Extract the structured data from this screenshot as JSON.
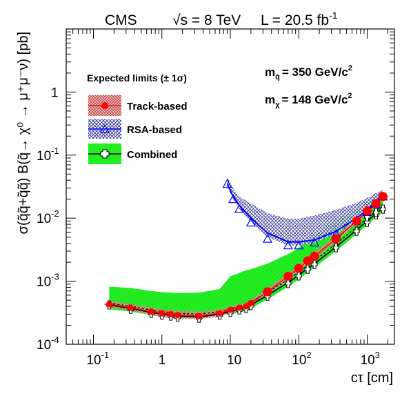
{
  "header": {
    "experiment": "CMS",
    "energy": "√s = 8 TeV",
    "lumi_prefix": "L = 20.5 fb",
    "lumi_sup": "-1"
  },
  "chart_data": {
    "type": "line",
    "x_scale": "log",
    "y_scale": "log",
    "xlabel": "cτ [cm]",
    "ylabel": "σ(q̃q̃+q̃q̃) B(q̃→ χ⁰ → μ⁺μ⁻ν) [pb]",
    "xlim": [
      0.04,
      2500
    ],
    "ylim": [
      0.0001,
      10
    ],
    "x_ticks": [
      {
        "value": 0.1,
        "base": "10",
        "exp": "-1"
      },
      {
        "value": 1,
        "base": "1",
        "exp": ""
      },
      {
        "value": 10,
        "base": "10",
        "exp": ""
      },
      {
        "value": 100,
        "base": "10",
        "exp": "2"
      },
      {
        "value": 1000,
        "base": "10",
        "exp": "3"
      }
    ],
    "y_ticks": [
      {
        "value": 0.0001,
        "base": "10",
        "exp": "-4"
      },
      {
        "value": 0.001,
        "base": "10",
        "exp": "-3"
      },
      {
        "value": 0.01,
        "base": "10",
        "exp": "-2"
      },
      {
        "value": 0.1,
        "base": "10",
        "exp": "-1"
      },
      {
        "value": 1,
        "base": "1",
        "exp": ""
      }
    ],
    "legend": {
      "title": "Expected limits (± 1σ)",
      "placement": "top-left",
      "entries": [
        "Track-based",
        "RSA-based",
        "Combined"
      ]
    },
    "annotations": {
      "squark_mass_label": "m",
      "squark_mass_sub": "q̃",
      "squark_mass_value": "= 350 GeV/c",
      "squark_mass_sup": "2",
      "neutralino_mass_label": "m",
      "neutralino_mass_sub": "χ",
      "neutralino_mass_value": "= 148 GeV/c",
      "neutralino_mass_sup": "2"
    },
    "series": [
      {
        "name": "Track-based",
        "color": "#ff0000",
        "band_color": "#c0392b",
        "x": [
          0.17,
          0.35,
          0.7,
          1.0,
          1.35,
          1.7,
          3.5,
          7.0,
          10.0,
          13.5,
          17.0,
          20.0,
          35.0,
          70.0,
          100.0,
          135.0,
          170.0,
          350.0,
          700.0,
          1000.0,
          1350.0,
          1700.0
        ],
        "y": [
          0.00043,
          0.00038,
          0.00033,
          0.00031,
          0.0003,
          0.00029,
          0.00028,
          0.00031,
          0.00035,
          0.00038,
          0.0004,
          0.00045,
          0.00068,
          0.0012,
          0.0016,
          0.0021,
          0.0025,
          0.0047,
          0.009,
          0.013,
          0.017,
          0.022
        ],
        "band_low": [
          0.00038,
          0.00034,
          0.00029,
          0.00027,
          0.00026,
          0.00025,
          0.00025,
          0.00027,
          0.00031,
          0.00034,
          0.00036,
          0.0004,
          0.0006,
          0.00105,
          0.0014,
          0.0018,
          0.0022,
          0.0042,
          0.0082,
          0.0117,
          0.0152,
          0.0195
        ],
        "band_high": [
          0.00049,
          0.00044,
          0.00038,
          0.00036,
          0.00035,
          0.00034,
          0.00033,
          0.00036,
          0.0004,
          0.00043,
          0.00046,
          0.00051,
          0.00077,
          0.00135,
          0.0018,
          0.0024,
          0.0029,
          0.0053,
          0.0099,
          0.0143,
          0.0187,
          0.025
        ]
      },
      {
        "name": "RSA-based",
        "color": "#0000ff",
        "band_color": "#000080",
        "x": [
          9.0,
          11.0,
          13.5,
          20.0,
          35.0,
          70.0,
          100.0,
          170.0,
          350.0,
          700.0,
          1000.0,
          1350.0,
          1700.0
        ],
        "y": [
          0.035,
          0.022,
          0.016,
          0.01,
          0.0058,
          0.0042,
          0.0042,
          0.0045,
          0.0062,
          0.01,
          0.0135,
          0.018,
          0.024
        ],
        "band_low": [
          0.032,
          0.02,
          0.014,
          0.0085,
          0.005,
          0.0037,
          0.0037,
          0.0041,
          0.0056,
          0.0092,
          0.0125,
          0.0165,
          0.022
        ],
        "band_high": [
          0.045,
          0.03,
          0.022,
          0.017,
          0.012,
          0.0098,
          0.0098,
          0.011,
          0.0135,
          0.0175,
          0.021,
          0.025,
          0.028
        ]
      },
      {
        "name": "Combined",
        "color": "#000000",
        "band_color": "#00ff00",
        "x": [
          0.17,
          0.35,
          0.7,
          1.0,
          1.35,
          1.7,
          3.5,
          7.0,
          10.0,
          13.5,
          17.0,
          20.0,
          35.0,
          70.0,
          100.0,
          135.0,
          170.0,
          350.0,
          700.0,
          1000.0,
          1350.0,
          1700.0
        ],
        "y": [
          0.00042,
          0.00037,
          0.00032,
          0.0003,
          0.00029,
          0.00028,
          0.00027,
          0.0003,
          0.00033,
          0.00036,
          0.00038,
          0.00042,
          0.0006,
          0.00095,
          0.00125,
          0.0016,
          0.0019,
          0.0035,
          0.0065,
          0.009,
          0.0118,
          0.0145
        ],
        "band_low": [
          0.00036,
          0.00033,
          0.00029,
          0.00028,
          0.00028,
          0.00028,
          0.00028,
          0.00029,
          0.0003,
          0.00032,
          0.00034,
          0.00037,
          0.00052,
          0.00082,
          0.00107,
          0.00138,
          0.00165,
          0.003,
          0.0056,
          0.0078,
          0.0103,
          0.0127
        ],
        "band_high": [
          0.00082,
          0.00078,
          0.0007,
          0.00067,
          0.00066,
          0.00065,
          0.00066,
          0.00075,
          0.0012,
          0.00135,
          0.0015,
          0.00155,
          0.0019,
          0.0027,
          0.0034,
          0.0043,
          0.0053,
          0.0093,
          0.0135,
          0.0175,
          0.022,
          0.027
        ],
        "markers_y": [
          0.00042,
          0.00036,
          0.00031,
          0.00029,
          0.00028,
          0.00027,
          0.00026,
          0.00029,
          0.00032,
          0.00035,
          0.00037,
          0.00041,
          0.00058,
          0.00092,
          0.00121,
          0.00155,
          0.00185,
          0.0034,
          0.0062,
          0.0086,
          0.0113,
          0.0139
        ],
        "dashed_y": [
          0.00045,
          0.0004,
          0.00035,
          0.00033,
          0.00032,
          0.00031,
          0.0003,
          0.00033,
          0.00037,
          0.0004,
          0.00043,
          0.00047,
          0.00067,
          0.00106,
          0.0014,
          0.00178,
          0.00211,
          0.0039,
          0.0072,
          0.01,
          0.013,
          0.016
        ],
        "extra_markers": [
          {
            "x": 1000.0,
            "y": 0.0105
          },
          {
            "x": 1350.0,
            "y": 0.0123
          }
        ]
      }
    ],
    "rsa_marker_x": [
      9.0,
      11.0,
      13.5,
      20.0,
      35.0,
      70.0,
      100.0,
      170.0,
      350.0,
      700.0,
      1000.0,
      1350.0,
      1700.0
    ],
    "rsa_marker_y": [
      0.035,
      0.02,
      0.014,
      0.0085,
      0.0047,
      0.0037,
      0.0037,
      0.0041,
      0.0056,
      0.0092,
      0.0125,
      0.0165,
      0.022
    ]
  }
}
